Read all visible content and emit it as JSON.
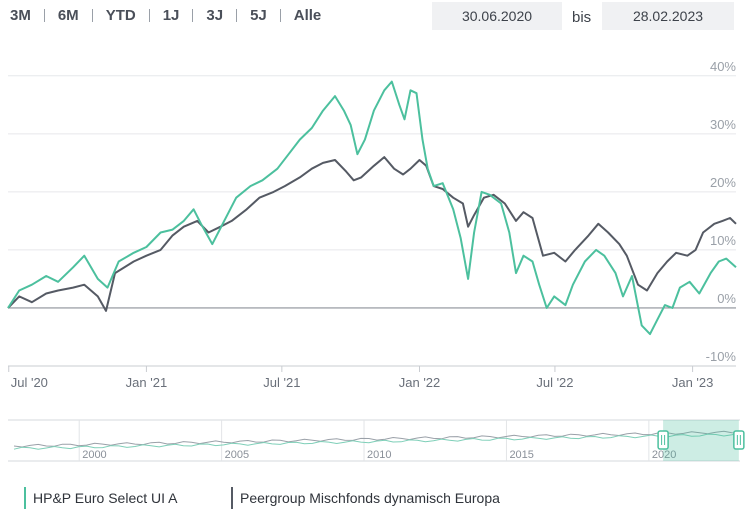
{
  "range_buttons": [
    "3M",
    "6M",
    "YTD",
    "1J",
    "3J",
    "5J",
    "Alle"
  ],
  "date_from": "30.06.2020",
  "date_sep": "bis",
  "date_to": "28.02.2023",
  "chart_data": {
    "type": "line",
    "y_ticks": [
      "40%",
      "30%",
      "20%",
      "10%",
      "0%",
      "-10%"
    ],
    "y_tick_values": [
      40,
      30,
      20,
      10,
      0,
      -10
    ],
    "ylim": [
      -10,
      41
    ],
    "x_ticks": [
      "Jul '20",
      "Jan '21",
      "Jul '21",
      "Jan '22",
      "Jul '22",
      "Jan '23"
    ],
    "x_tick_dates": [
      "2020-07-01",
      "2021-01-01",
      "2021-07-01",
      "2022-01-01",
      "2022-07-01",
      "2023-01-01"
    ],
    "xlim": [
      "2020-06-30",
      "2023-02-28"
    ],
    "grid": "horizontal",
    "series": [
      {
        "name": "HP&P Euro Select UI A",
        "color": "#4cc09e",
        "points": [
          [
            "2020-06-30",
            0
          ],
          [
            "2020-07-15",
            3
          ],
          [
            "2020-08-01",
            4
          ],
          [
            "2020-08-20",
            5.5
          ],
          [
            "2020-09-05",
            4.5
          ],
          [
            "2020-09-25",
            7
          ],
          [
            "2020-10-10",
            9
          ],
          [
            "2020-10-28",
            5
          ],
          [
            "2020-11-10",
            3.5
          ],
          [
            "2020-11-25",
            8
          ],
          [
            "2020-12-15",
            9.5
          ],
          [
            "2021-01-01",
            10.5
          ],
          [
            "2021-01-20",
            13
          ],
          [
            "2021-02-05",
            13.5
          ],
          [
            "2021-02-20",
            15
          ],
          [
            "2021-03-05",
            17
          ],
          [
            "2021-03-15",
            14.5
          ],
          [
            "2021-03-30",
            11
          ],
          [
            "2021-04-15",
            15
          ],
          [
            "2021-05-01",
            19
          ],
          [
            "2021-05-20",
            21
          ],
          [
            "2021-06-05",
            22
          ],
          [
            "2021-06-25",
            24
          ],
          [
            "2021-07-10",
            26.5
          ],
          [
            "2021-07-25",
            29
          ],
          [
            "2021-08-10",
            31
          ],
          [
            "2021-08-25",
            34
          ],
          [
            "2021-09-10",
            36.5
          ],
          [
            "2021-09-22",
            34
          ],
          [
            "2021-10-01",
            31.5
          ],
          [
            "2021-10-10",
            26.5
          ],
          [
            "2021-10-20",
            29
          ],
          [
            "2021-11-01",
            34
          ],
          [
            "2021-11-15",
            37.5
          ],
          [
            "2021-11-25",
            39
          ],
          [
            "2021-12-05",
            35
          ],
          [
            "2021-12-12",
            32.5
          ],
          [
            "2021-12-20",
            37.5
          ],
          [
            "2021-12-28",
            37
          ],
          [
            "2022-01-05",
            29
          ],
          [
            "2022-01-12",
            24
          ],
          [
            "2022-01-20",
            21
          ],
          [
            "2022-02-01",
            21.5
          ],
          [
            "2022-02-15",
            17
          ],
          [
            "2022-02-25",
            12
          ],
          [
            "2022-03-07",
            5
          ],
          [
            "2022-03-15",
            13
          ],
          [
            "2022-03-25",
            20
          ],
          [
            "2022-04-05",
            19.5
          ],
          [
            "2022-04-20",
            18
          ],
          [
            "2022-05-01",
            13
          ],
          [
            "2022-05-10",
            6
          ],
          [
            "2022-05-20",
            9
          ],
          [
            "2022-06-01",
            8
          ],
          [
            "2022-06-10",
            4
          ],
          [
            "2022-06-20",
            0
          ],
          [
            "2022-06-30",
            2
          ],
          [
            "2022-07-15",
            0.5
          ],
          [
            "2022-07-25",
            4
          ],
          [
            "2022-08-10",
            8
          ],
          [
            "2022-08-25",
            10
          ],
          [
            "2022-09-05",
            9
          ],
          [
            "2022-09-20",
            6
          ],
          [
            "2022-09-30",
            2
          ],
          [
            "2022-10-12",
            5.5
          ],
          [
            "2022-10-25",
            -3
          ],
          [
            "2022-11-05",
            -4.5
          ],
          [
            "2022-11-15",
            -2
          ],
          [
            "2022-11-25",
            0.5
          ],
          [
            "2022-12-05",
            0
          ],
          [
            "2022-12-15",
            3.5
          ],
          [
            "2022-12-28",
            4.5
          ],
          [
            "2023-01-10",
            2.5
          ],
          [
            "2023-01-25",
            6
          ],
          [
            "2023-02-05",
            8
          ],
          [
            "2023-02-15",
            8.5
          ],
          [
            "2023-02-28",
            7
          ]
        ]
      },
      {
        "name": "Peergroup Mischfonds dynamisch Europa",
        "color": "#555a64",
        "points": [
          [
            "2020-06-30",
            0
          ],
          [
            "2020-07-15",
            2
          ],
          [
            "2020-08-01",
            1
          ],
          [
            "2020-08-20",
            2.5
          ],
          [
            "2020-09-05",
            3
          ],
          [
            "2020-09-25",
            3.5
          ],
          [
            "2020-10-10",
            4
          ],
          [
            "2020-10-28",
            2
          ],
          [
            "2020-11-08",
            -0.5
          ],
          [
            "2020-11-20",
            6
          ],
          [
            "2020-12-15",
            8
          ],
          [
            "2021-01-01",
            9
          ],
          [
            "2021-01-20",
            10
          ],
          [
            "2021-02-05",
            12.5
          ],
          [
            "2021-02-20",
            14
          ],
          [
            "2021-03-10",
            15
          ],
          [
            "2021-03-25",
            13
          ],
          [
            "2021-04-10",
            14
          ],
          [
            "2021-04-25",
            15
          ],
          [
            "2021-05-15",
            17
          ],
          [
            "2021-06-01",
            19
          ],
          [
            "2021-06-20",
            20
          ],
          [
            "2021-07-05",
            21
          ],
          [
            "2021-07-25",
            22.5
          ],
          [
            "2021-08-10",
            24
          ],
          [
            "2021-08-25",
            25
          ],
          [
            "2021-09-10",
            25.5
          ],
          [
            "2021-09-25",
            23.5
          ],
          [
            "2021-10-05",
            22
          ],
          [
            "2021-10-15",
            22.5
          ],
          [
            "2021-11-01",
            24.5
          ],
          [
            "2021-11-15",
            26
          ],
          [
            "2021-11-28",
            24
          ],
          [
            "2021-12-10",
            23
          ],
          [
            "2021-12-20",
            24
          ],
          [
            "2022-01-01",
            25.5
          ],
          [
            "2022-01-10",
            24.5
          ],
          [
            "2022-01-20",
            21
          ],
          [
            "2022-02-01",
            20.5
          ],
          [
            "2022-02-15",
            19
          ],
          [
            "2022-02-28",
            18
          ],
          [
            "2022-03-07",
            14
          ],
          [
            "2022-03-15",
            16
          ],
          [
            "2022-03-28",
            19
          ],
          [
            "2022-04-10",
            19.5
          ],
          [
            "2022-04-25",
            18
          ],
          [
            "2022-05-10",
            15
          ],
          [
            "2022-05-20",
            16.5
          ],
          [
            "2022-06-01",
            15.5
          ],
          [
            "2022-06-15",
            9
          ],
          [
            "2022-06-30",
            9.5
          ],
          [
            "2022-07-15",
            8
          ],
          [
            "2022-07-28",
            10
          ],
          [
            "2022-08-15",
            12.5
          ],
          [
            "2022-08-28",
            14.5
          ],
          [
            "2022-09-10",
            13
          ],
          [
            "2022-09-25",
            11
          ],
          [
            "2022-10-05",
            9
          ],
          [
            "2022-10-20",
            4
          ],
          [
            "2022-11-01",
            3
          ],
          [
            "2022-11-15",
            6
          ],
          [
            "2022-11-28",
            8
          ],
          [
            "2022-12-10",
            9.5
          ],
          [
            "2022-12-25",
            9
          ],
          [
            "2023-01-05",
            10
          ],
          [
            "2023-01-15",
            13
          ],
          [
            "2023-01-30",
            14.5
          ],
          [
            "2023-02-10",
            15
          ],
          [
            "2023-02-20",
            15.5
          ],
          [
            "2023-02-28",
            14.5
          ]
        ]
      }
    ],
    "navigator": {
      "x_ticks": [
        "2000",
        "2005",
        "2010",
        "2015",
        "2020"
      ],
      "x_tick_years": [
        2000,
        2005,
        2010,
        2015,
        2020
      ],
      "year_range": [
        1997.5,
        2023.2
      ]
    }
  }
}
